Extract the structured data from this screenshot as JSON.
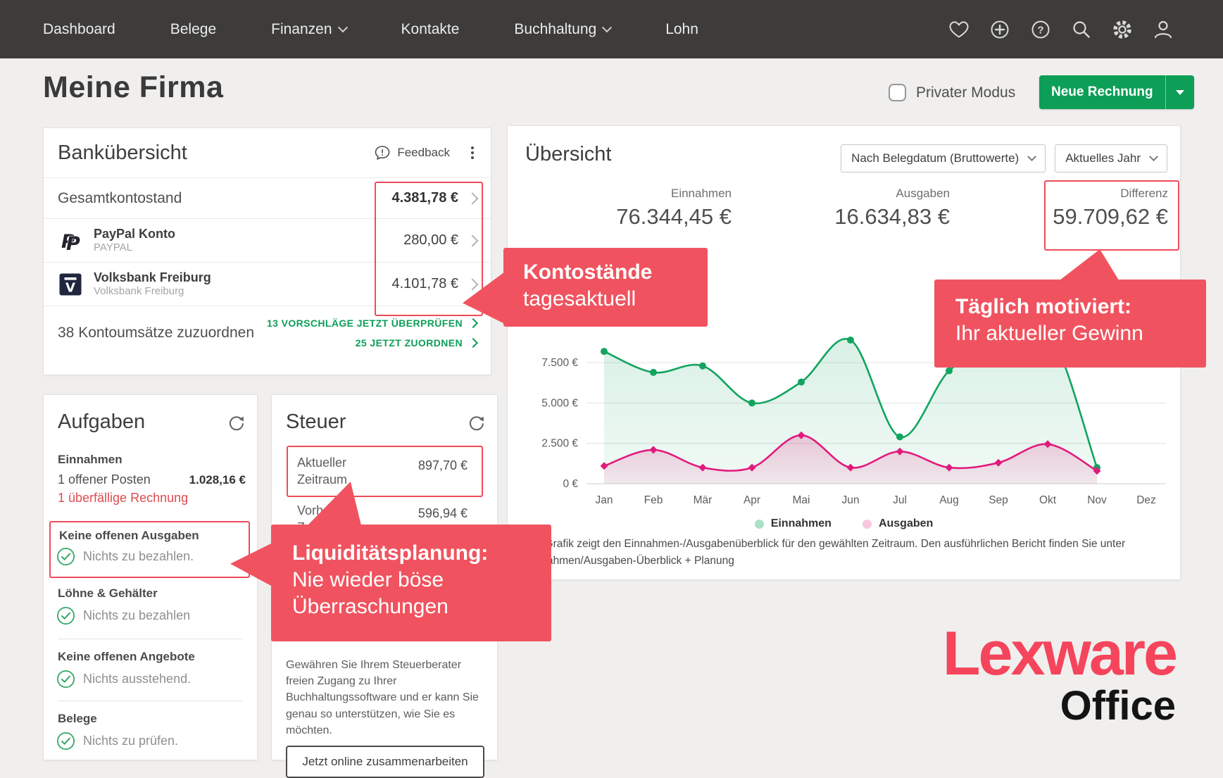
{
  "colors": {
    "nav_bg": "#3d3c3b",
    "accent_green": "#0d9e58",
    "callout_red": "#f0535f",
    "annotation_red": "#ee4c5a",
    "chart_green": "#12a45f",
    "chart_pink": "#e21a7d",
    "logo_red": "#f5455c",
    "alert_red": "#e04b50"
  },
  "nav": {
    "items": [
      {
        "label": "Dashboard"
      },
      {
        "label": "Belege"
      },
      {
        "label": "Finanzen"
      },
      {
        "label": "Kontakte"
      },
      {
        "label": "Buchhaltung"
      },
      {
        "label": "Lohn"
      }
    ]
  },
  "header": {
    "title": "Meine Firma",
    "private_mode_label": "Privater Modus",
    "new_invoice_label": "Neue Rechnung"
  },
  "bank": {
    "title": "Bankübersicht",
    "feedback": "Feedback",
    "total_label": "Gesamtkontostand",
    "total_value": "4.381,78 €",
    "accounts": [
      {
        "name": "PayPal Konto",
        "subtitle": "PAYPAL",
        "value": "280,00 €"
      },
      {
        "name": "Volksbank Freiburg",
        "subtitle": "Volksbank Freiburg",
        "value": "4.101,78 €"
      }
    ],
    "assign_label": "38 Kontoumsätze zuzuordnen",
    "link_review": "13 VORSCHLÄGE JETZT ÜBERPRÜFEN",
    "link_assign": "25 JETZT ZUORDNEN"
  },
  "overview": {
    "title": "Übersicht",
    "filter_mode": "Nach Belegdatum (Bruttowerte)",
    "filter_period": "Aktuelles Jahr",
    "stats": [
      {
        "label": "Einnahmen",
        "value": "76.344,45 €"
      },
      {
        "label": "Ausgaben",
        "value": "16.634,83 €"
      },
      {
        "label": "Differenz",
        "value": "59.709,62 €"
      }
    ],
    "note_line1": "Die Grafik zeigt den Einnahmen-/Ausgabenüberblick für den gewählten Zeitraum. Den ausführlichen Bericht finden Sie unter",
    "note_line2": "Einnahmen/Ausgaben-Überblick + Planung"
  },
  "tasks": {
    "title": "Aufgaben",
    "income_header": "Einnahmen",
    "open_item": "1 offener Posten",
    "open_item_value": "1.028,16 €",
    "overdue": "1 überfällige Rechnung",
    "no_expenses_header": "Keine offenen Ausgaben",
    "no_expenses_note": "Nichts zu bezahlen.",
    "wages_header": "Löhne & Gehälter",
    "wages_note": "Nichts zu bezahlen",
    "offers_header": "Keine offenen Angebote",
    "offers_note": "Nichts ausstehend.",
    "receipts_header": "Belege",
    "receipts_note": "Nichts zu prüfen."
  },
  "tax": {
    "title": "Steuer",
    "current_label": "Aktueller Zeitraum",
    "current_value": "897,70 €",
    "previous_label": "Vorheriger Zeitraum",
    "previous_value": "596,94 €",
    "body": "Gewähren Sie Ihrem Steuerberater freien Zugang zu Ihrer Buchhaltungssoftware und er kann Sie genau so unterstützen, wie Sie es möchten.",
    "button": "Jetzt online zusammenarbeiten"
  },
  "callouts": {
    "accounts": {
      "line1": "Kontostände",
      "line2": "tagesaktuell"
    },
    "profit": {
      "line1": "Täglich motiviert:",
      "line2": "Ihr aktueller Gewinn"
    },
    "liquidity": {
      "line1": "Liquiditätsplanung:",
      "line2": "Nie wieder böse",
      "line3": "Überraschungen"
    }
  },
  "logo": {
    "brand": "Lexware",
    "suite": "Office"
  },
  "chart_data": {
    "type": "area",
    "title": "Einnahmen-/Ausgabenüberblick",
    "x_categories": [
      "Jan",
      "Feb",
      "Mär",
      "Apr",
      "Mai",
      "Jun",
      "Jul",
      "Aug",
      "Sep",
      "Okt",
      "Nov",
      "Dez"
    ],
    "series": [
      {
        "name": "Einnahmen",
        "color": "#12a45f",
        "marker": "circle",
        "values": [
          8200,
          6900,
          7300,
          5000,
          6300,
          8900,
          2900,
          7000,
          8600,
          9600,
          1000
        ]
      },
      {
        "name": "Ausgaben",
        "color": "#e21a7d",
        "marker": "diamond",
        "values": [
          1100,
          2100,
          1000,
          1000,
          3000,
          1000,
          2000,
          1000,
          1300,
          2450,
          800
        ]
      }
    ],
    "yticks": [
      {
        "label": "0 €",
        "value": 0
      },
      {
        "label": "2.500 €",
        "value": 2500
      },
      {
        "label": "5.000 €",
        "value": 5000
      },
      {
        "label": "7.500 €",
        "value": 7500
      }
    ],
    "ylim": [
      0,
      10000
    ],
    "grid": true,
    "legend_position": "bottom"
  }
}
